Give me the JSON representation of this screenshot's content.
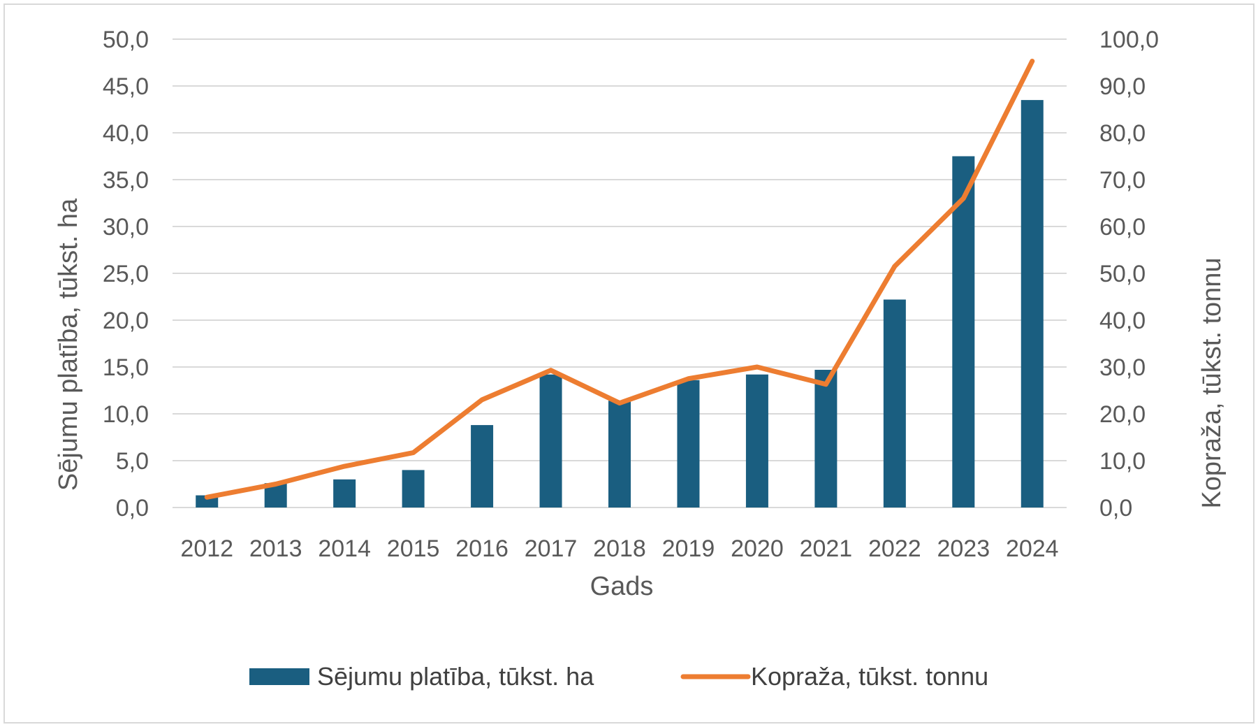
{
  "chart_data": {
    "type": "bar+line",
    "categories": [
      "2012",
      "2013",
      "2014",
      "2015",
      "2016",
      "2017",
      "2018",
      "2019",
      "2020",
      "2021",
      "2022",
      "2023",
      "2024"
    ],
    "series": [
      {
        "name": "Sējumu platība, tūkst. ha",
        "type": "bar",
        "axis": "left",
        "color": "#1a5e80",
        "values": [
          1.3,
          2.6,
          3.0,
          4.0,
          8.8,
          14.2,
          11.4,
          13.6,
          14.2,
          14.7,
          22.2,
          37.5,
          43.5
        ]
      },
      {
        "name": "Kopraža, tūkst. tonnu",
        "type": "line",
        "axis": "right",
        "color": "#ed7d31",
        "values": [
          2.2,
          5.0,
          8.8,
          11.7,
          23.0,
          29.3,
          22.3,
          27.5,
          30.0,
          26.3,
          51.5,
          66.0,
          95.3
        ]
      }
    ],
    "xlabel": "Gads",
    "ylabel_left": "Sējumu platība, tūkst. ha",
    "ylabel_right": "Kopraža, tūkst. tonnu",
    "ylim_left": [
      0,
      50
    ],
    "ylim_right": [
      0,
      100
    ],
    "yticks_left": [
      "0,0",
      "5,0",
      "10,0",
      "15,0",
      "20,0",
      "25,0",
      "30,0",
      "35,0",
      "40,0",
      "45,0",
      "50,0"
    ],
    "yticks_right": [
      "0,0",
      "10,0",
      "20,0",
      "30,0",
      "40,0",
      "50,0",
      "60,0",
      "70,0",
      "80,0",
      "90,0",
      "100,0"
    ],
    "grid": true,
    "legend": "bottom"
  }
}
